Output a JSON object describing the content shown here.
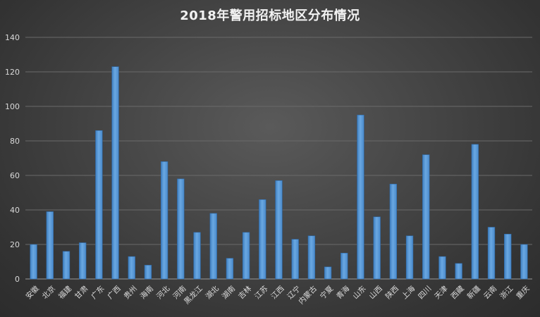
{
  "chart_data": {
    "type": "bar",
    "title": "2018年警用招标地区分布情况",
    "xlabel": "",
    "ylabel": "",
    "ylim": [
      0,
      140
    ],
    "yticks": [
      0,
      20,
      40,
      60,
      80,
      100,
      120,
      140
    ],
    "grid": true,
    "legend": "none",
    "bar_color": "#5b9bd5",
    "categories": [
      "安徽",
      "北京",
      "福建",
      "甘肃",
      "广东",
      "广西",
      "贵州",
      "海南",
      "河北",
      "河南",
      "黑龙江",
      "湖北",
      "湖南",
      "吉林",
      "江苏",
      "江西",
      "辽宁",
      "内蒙古",
      "宁夏",
      "青海",
      "山东",
      "山西",
      "陕西",
      "上海",
      "四川",
      "天津",
      "西藏",
      "新疆",
      "云南",
      "浙江",
      "重庆"
    ],
    "values": [
      20,
      39,
      16,
      21,
      86,
      123,
      13,
      8,
      68,
      58,
      27,
      38,
      12,
      27,
      46,
      57,
      23,
      25,
      7,
      15,
      95,
      36,
      55,
      25,
      72,
      13,
      9,
      78,
      30,
      26,
      20
    ]
  }
}
